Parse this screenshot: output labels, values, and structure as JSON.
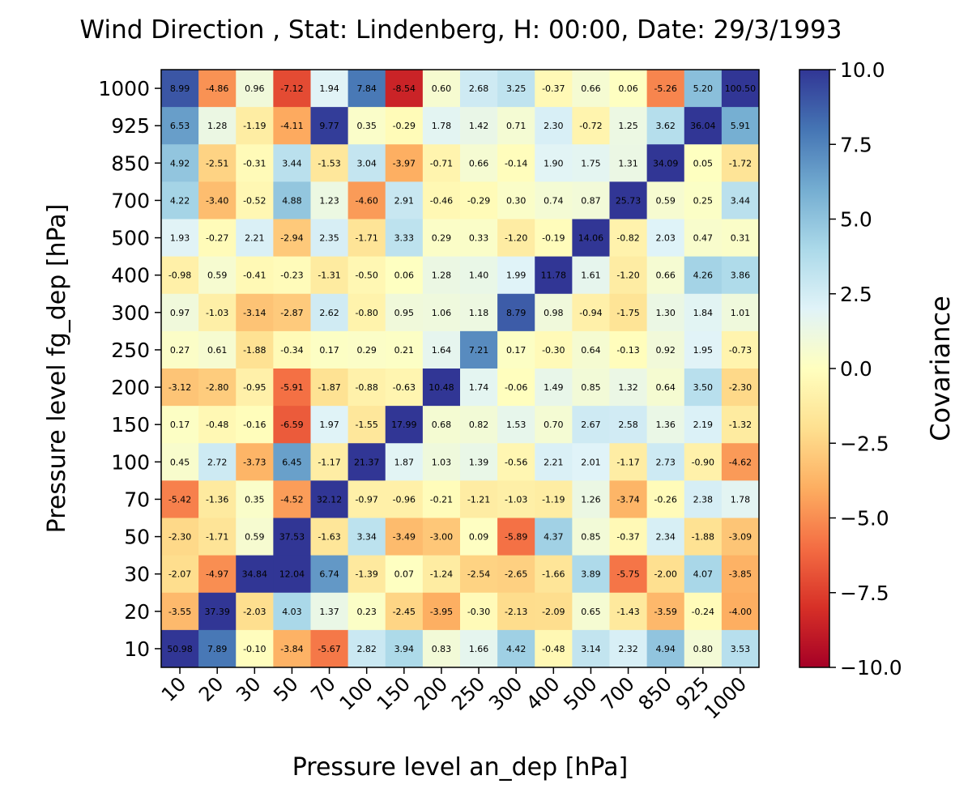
{
  "chart_data": {
    "type": "heatmap",
    "title": "Wind Direction , Stat: Lindenberg, H: 00:00, Date: 29/3/1993",
    "xlabel": "Pressure level an_dep [hPa]",
    "ylabel": "Pressure level fg_dep [hPa]",
    "x_categories": [
      "10",
      "20",
      "30",
      "50",
      "70",
      "100",
      "150",
      "200",
      "250",
      "300",
      "400",
      "500",
      "700",
      "850",
      "925",
      "1000"
    ],
    "y_categories": [
      "1000",
      "925",
      "850",
      "700",
      "500",
      "400",
      "300",
      "250",
      "200",
      "150",
      "100",
      "70",
      "50",
      "30",
      "20",
      "10"
    ],
    "values": [
      [
        8.99,
        -4.86,
        0.96,
        -7.12,
        1.94,
        7.84,
        -8.54,
        0.6,
        2.68,
        3.25,
        -0.37,
        0.66,
        0.06,
        -5.26,
        5.2,
        100.5
      ],
      [
        6.53,
        1.28,
        -1.19,
        -4.11,
        9.77,
        0.35,
        -0.29,
        1.78,
        1.42,
        0.71,
        2.3,
        -0.72,
        1.25,
        3.62,
        36.04,
        5.91
      ],
      [
        4.92,
        -2.51,
        -0.31,
        3.44,
        -1.53,
        3.04,
        -3.97,
        -0.71,
        0.66,
        -0.14,
        1.9,
        1.75,
        1.31,
        34.09,
        0.05,
        -1.72
      ],
      [
        4.22,
        -3.4,
        -0.52,
        4.88,
        1.23,
        -4.6,
        2.91,
        -0.46,
        -0.29,
        0.3,
        0.74,
        0.87,
        25.73,
        0.59,
        0.25,
        3.44
      ],
      [
        1.93,
        -0.27,
        2.21,
        -2.94,
        2.35,
        -1.71,
        3.33,
        0.29,
        0.33,
        -1.2,
        -0.19,
        14.06,
        -0.82,
        2.03,
        0.47,
        0.31
      ],
      [
        -0.98,
        0.59,
        -0.41,
        -0.23,
        -1.31,
        -0.5,
        0.06,
        1.28,
        1.4,
        1.99,
        11.78,
        1.61,
        -1.2,
        0.66,
        4.26,
        3.86
      ],
      [
        0.97,
        -1.03,
        -3.14,
        -2.87,
        2.62,
        -0.8,
        0.95,
        1.06,
        1.18,
        8.79,
        0.98,
        -0.94,
        -1.75,
        1.3,
        1.84,
        1.01
      ],
      [
        0.27,
        0.61,
        -1.88,
        -0.34,
        0.17,
        0.29,
        0.21,
        1.64,
        7.21,
        0.17,
        -0.3,
        0.64,
        -0.13,
        0.92,
        1.95,
        -0.73
      ],
      [
        -3.12,
        -2.8,
        -0.95,
        -5.91,
        -1.87,
        -0.88,
        -0.63,
        10.48,
        1.74,
        -0.06,
        1.49,
        0.85,
        1.32,
        0.64,
        3.5,
        -2.3
      ],
      [
        0.17,
        -0.48,
        -0.16,
        -6.59,
        1.97,
        -1.55,
        17.99,
        0.68,
        0.82,
        1.53,
        0.7,
        2.67,
        2.58,
        1.36,
        2.19,
        -1.32
      ],
      [
        0.45,
        2.72,
        -3.73,
        6.45,
        -1.17,
        21.37,
        1.87,
        1.03,
        1.39,
        -0.56,
        2.21,
        2.01,
        -1.17,
        2.73,
        -0.9,
        -4.62
      ],
      [
        -5.42,
        -1.36,
        0.35,
        -4.52,
        32.12,
        -0.97,
        -0.96,
        -0.21,
        -1.21,
        -1.03,
        -1.19,
        1.26,
        -3.74,
        -0.26,
        2.38,
        1.78
      ],
      [
        -2.3,
        -1.71,
        0.59,
        37.53,
        -1.63,
        3.34,
        -3.49,
        -3.0,
        0.09,
        -5.89,
        4.37,
        0.85,
        -0.37,
        2.34,
        -1.88,
        -3.09
      ],
      [
        -2.07,
        -4.97,
        34.84,
        12.04,
        6.74,
        -1.39,
        0.07,
        -1.24,
        -2.54,
        -2.65,
        -1.66,
        3.89,
        -5.75,
        -2.0,
        4.07,
        -3.85
      ],
      [
        -3.55,
        37.39,
        -2.03,
        4.03,
        1.37,
        0.23,
        -2.45,
        -3.95,
        -0.3,
        -2.13,
        -2.09,
        0.65,
        -1.43,
        -3.59,
        -0.24,
        -4.0
      ],
      [
        50.98,
        7.89,
        -0.1,
        -3.84,
        -5.67,
        2.82,
        3.94,
        0.83,
        1.66,
        4.42,
        -0.48,
        3.14,
        2.32,
        4.94,
        0.8,
        3.53
      ]
    ],
    "value_format": "2 decimals",
    "color_range": [
      -10.0,
      10.0
    ],
    "colormap": "RdYlBu",
    "colorbar": {
      "label": "Covariance",
      "ticks": [
        10.0,
        7.5,
        5.0,
        2.5,
        0.0,
        -2.5,
        -5.0,
        -7.5,
        -10.0
      ],
      "tick_labels": [
        "10.0",
        "7.5",
        "5.0",
        "2.5",
        "0.0",
        "−2.5",
        "−5.0",
        "−7.5",
        "−10.0"
      ]
    },
    "grid": false,
    "legend": "colorbar-right"
  },
  "colors": {
    "frame": "#000000",
    "cell_text": "#000000"
  }
}
